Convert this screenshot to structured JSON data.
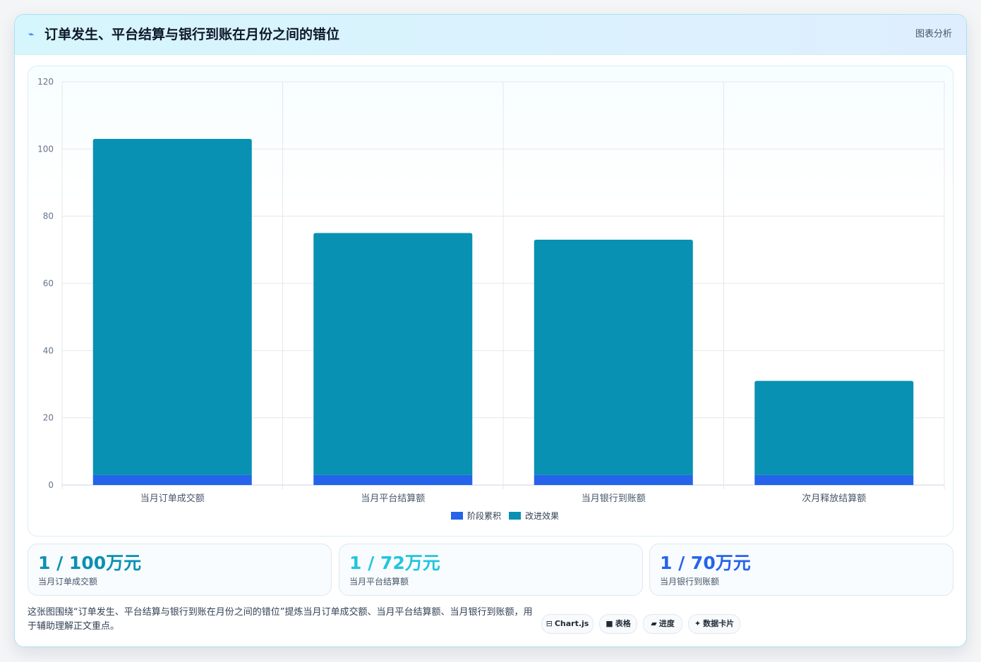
{
  "card": {
    "title": "订单发生、平台结算与银行到账在月份之间的错位",
    "tag": "图表分析",
    "icon": "pulse-line-icon"
  },
  "chart_data": {
    "type": "bar",
    "stacked": true,
    "categories": [
      "当月订单成交额",
      "当月平台结算额",
      "当月银行到账额",
      "次月释放结算额"
    ],
    "series": [
      {
        "name": "阶段累积",
        "color": "#2563eb",
        "values": [
          3,
          3,
          3,
          3
        ]
      },
      {
        "name": "改进效果",
        "color": "#0891b2",
        "values": [
          100,
          72,
          70,
          28
        ]
      }
    ],
    "ylim": [
      0,
      120
    ],
    "yticks": [
      0,
      20,
      40,
      60,
      80,
      100,
      120
    ],
    "grid": true,
    "legend": "bottom-center"
  },
  "stats": [
    {
      "value": "1 / 100万元",
      "label": "当月订单成交额",
      "color": "#0891b2"
    },
    {
      "value": "1 / 72万元",
      "label": "当月平台结算额",
      "color": "#22c5dd"
    },
    {
      "value": "1 / 70万元",
      "label": "当月银行到账额",
      "color": "#2563eb"
    }
  ],
  "description": "这张图围绕“订单发生、平台结算与银行到账在月份之间的错位”提炼当月订单成交额、当月平台结算额、当月银行到账额，用于辅助理解正文重点。",
  "chips": [
    {
      "icon": "⊟",
      "label": "Chart.js",
      "icon_name": "chart-icon"
    },
    {
      "icon": "■",
      "label": "表格",
      "icon_name": "table-icon"
    },
    {
      "icon": "▰",
      "label": "进度",
      "icon_name": "progress-icon"
    },
    {
      "icon": "✦",
      "label": "数据卡片",
      "icon_name": "sparkle-icon"
    }
  ]
}
